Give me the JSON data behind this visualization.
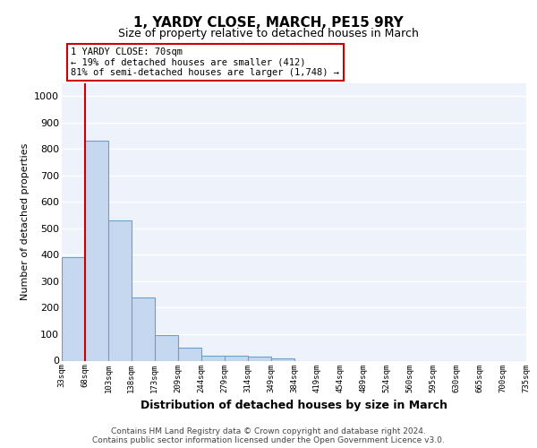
{
  "title": "1, YARDY CLOSE, MARCH, PE15 9RY",
  "subtitle": "Size of property relative to detached houses in March",
  "xlabel": "Distribution of detached houses by size in March",
  "ylabel": "Number of detached properties",
  "bin_labels": [
    "33sqm",
    "68sqm",
    "103sqm",
    "138sqm",
    "173sqm",
    "209sqm",
    "244sqm",
    "279sqm",
    "314sqm",
    "349sqm",
    "384sqm",
    "419sqm",
    "454sqm",
    "489sqm",
    "524sqm",
    "560sqm",
    "595sqm",
    "630sqm",
    "665sqm",
    "700sqm",
    "735sqm"
  ],
  "bar_values": [
    390,
    830,
    530,
    240,
    95,
    50,
    20,
    20,
    15,
    10,
    0,
    0,
    0,
    0,
    0,
    0,
    0,
    0,
    0,
    0
  ],
  "bar_color": "#c5d8f0",
  "bar_edge_color": "#6aa0cc",
  "vline_x": 1.0,
  "vline_color": "#cc0000",
  "annotation_text": "1 YARDY CLOSE: 70sqm\n← 19% of detached houses are smaller (412)\n81% of semi-detached houses are larger (1,748) →",
  "ann_box_edgecolor": "#cc0000",
  "footer_line1": "Contains HM Land Registry data © Crown copyright and database right 2024.",
  "footer_line2": "Contains public sector information licensed under the Open Government Licence v3.0.",
  "ylim": [
    0,
    1050
  ],
  "yticks": [
    0,
    100,
    200,
    300,
    400,
    500,
    600,
    700,
    800,
    900,
    1000
  ],
  "plot_bg_color": "#eef2fb",
  "grid_color": "#ffffff",
  "title_fontsize": 11,
  "subtitle_fontsize": 9,
  "xlabel_fontsize": 9,
  "ylabel_fontsize": 8
}
